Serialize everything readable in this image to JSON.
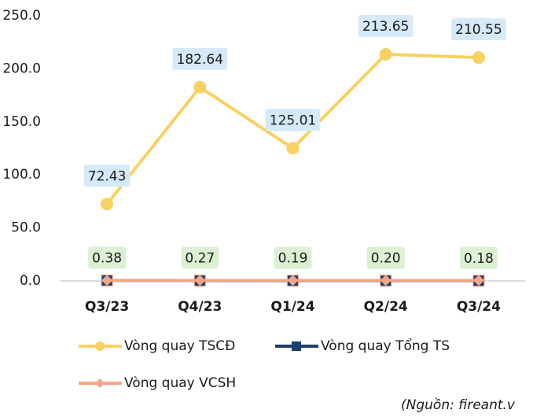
{
  "chart_data": {
    "type": "line",
    "categories": [
      "Q3/23",
      "Q4/23",
      "Q1/24",
      "Q2/24",
      "Q3/24"
    ],
    "series": [
      {
        "name": "Vòng quay TSCĐ",
        "color": "#f7d162",
        "marker": "circle",
        "label_bg": "#d6e9f8",
        "values": [
          72.43,
          182.64,
          125.01,
          213.65,
          210.55
        ]
      },
      {
        "name": "Vòng quay Tổng TS",
        "color": "#1f3f6e",
        "marker": "square",
        "label_bg": "#dcf0d4",
        "values": [
          0.38,
          0.27,
          0.19,
          0.2,
          0.18
        ],
        "value_labels": [
          "0.38",
          "0.27",
          "0.19",
          "0.20",
          "0.18"
        ]
      },
      {
        "name": "Vòng quay VCSH",
        "color": "#f3a584",
        "marker": "diamond",
        "values": [
          0.5,
          0.5,
          0.5,
          0.5,
          0.5
        ]
      }
    ],
    "ylim": [
      0,
      250
    ],
    "yticks": [
      {
        "value": 0,
        "label": "0.0"
      },
      {
        "value": 50,
        "label": "50.0"
      },
      {
        "value": 100,
        "label": "100.0"
      },
      {
        "value": 150,
        "label": "150.0"
      },
      {
        "value": 200,
        "label": "200.0"
      },
      {
        "value": 250,
        "label": "250.0"
      }
    ],
    "grid": false,
    "source": "(Nguồn: fireant.v"
  }
}
